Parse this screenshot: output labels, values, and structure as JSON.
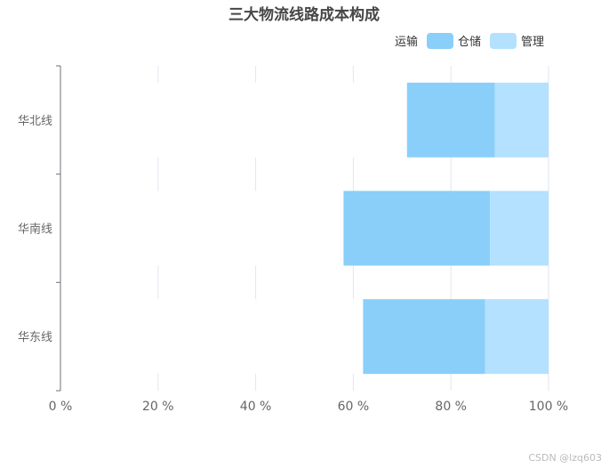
{
  "chart_data": {
    "type": "bar",
    "orientation": "horizontal",
    "stacked": true,
    "title": "三大物流线路成本构成",
    "categories": [
      "华北线",
      "华南线",
      "华东线"
    ],
    "series": [
      {
        "name": "运输",
        "color": "#ffffff",
        "values": [
          71,
          58,
          62
        ]
      },
      {
        "name": "仓储",
        "color": "#89cffa",
        "values": [
          18,
          30,
          25
        ]
      },
      {
        "name": "管理",
        "color": "#b3e1ff",
        "values": [
          11,
          12,
          13
        ]
      }
    ],
    "xlim": [
      0,
      100
    ],
    "xticks": [
      "0 %",
      "20 %",
      "40 %",
      "60 %",
      "80 %",
      "100 %"
    ],
    "grid": true,
    "legend_position": "top-right"
  },
  "watermark": "CSDN @lzq603"
}
